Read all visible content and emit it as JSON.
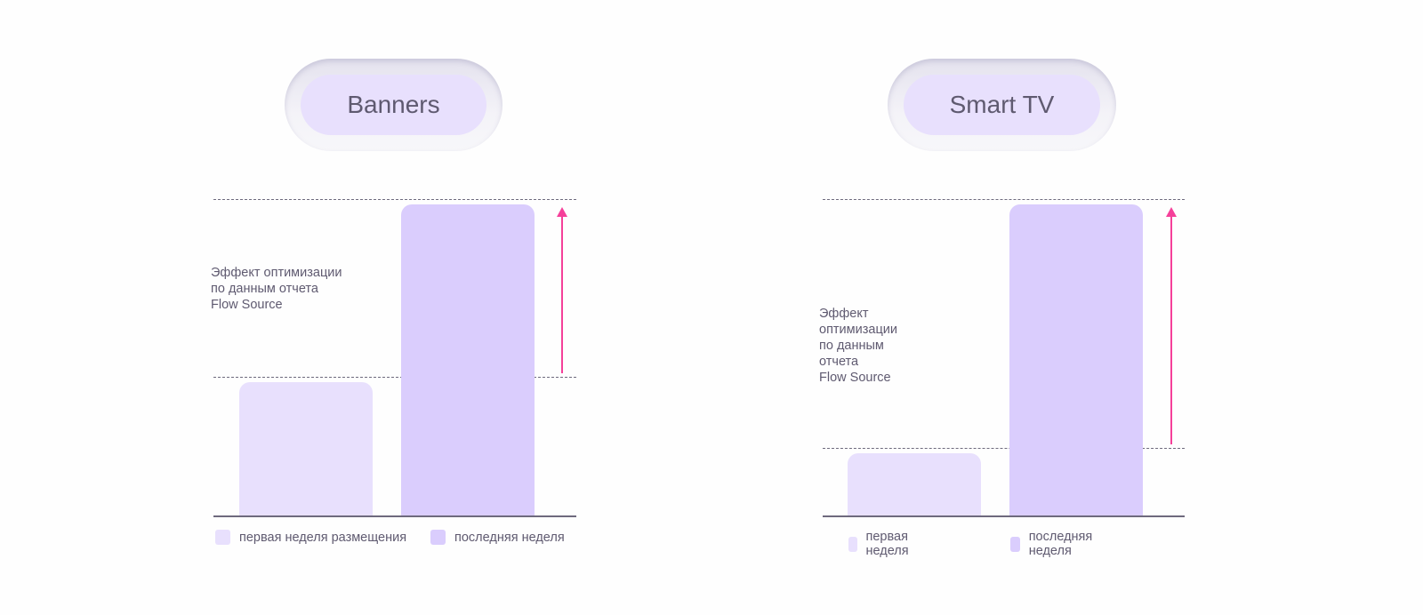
{
  "colors": {
    "first_week": "#e8e0fd",
    "last_week": "#dacdfd",
    "arrow": "#f5409a",
    "lines": "#6e6a7d"
  },
  "chart_data": [
    {
      "type": "bar",
      "title": "Banners",
      "annotation": "Эффект оптимизации\nпо данным отчета\nFlow Source",
      "categories": [
        "первая неделя размещения",
        "последняя неделя"
      ],
      "values": [
        43,
        100
      ],
      "ylim": [
        0,
        100
      ],
      "legend": [
        "первая неделя размещения",
        "последняя неделя"
      ],
      "legend_position": "bottom",
      "grid": false
    },
    {
      "type": "bar",
      "title": "Smart TV",
      "annotation": "Эффект оптимизации\nпо данным отчета\nFlow Source",
      "categories": [
        "первая неделя",
        "последняя неделя"
      ],
      "values": [
        20,
        100
      ],
      "ylim": [
        0,
        100
      ],
      "legend": [
        "первая неделя",
        "последняя неделя"
      ],
      "legend_position": "bottom",
      "grid": false
    }
  ]
}
